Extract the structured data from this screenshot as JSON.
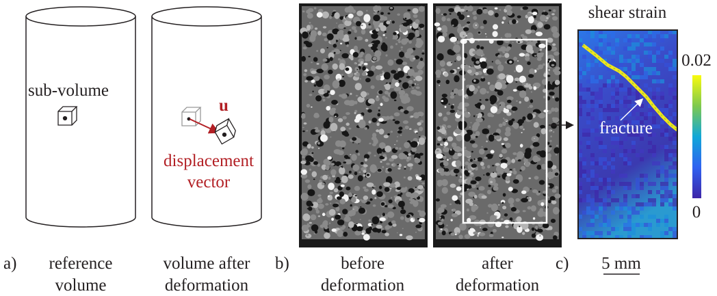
{
  "panel_a": {
    "label": "a)",
    "cylinders": [
      {
        "caption": [
          "reference",
          "volume"
        ],
        "annotation": "sub-volume"
      },
      {
        "caption": [
          "volume after",
          "deformation"
        ],
        "vector_symbol": "u",
        "annotation": [
          "displacement",
          "vector"
        ]
      }
    ]
  },
  "panel_b": {
    "label": "b)",
    "images": [
      {
        "caption": [
          "before",
          "deformation"
        ]
      },
      {
        "caption": [
          "after",
          "deformation"
        ]
      }
    ]
  },
  "panel_c": {
    "label": "c)",
    "title": "shear strain",
    "colorbar_max": "0.02",
    "colorbar_min": "0",
    "annotation": "fracture",
    "scale_bar": "5 mm"
  }
}
